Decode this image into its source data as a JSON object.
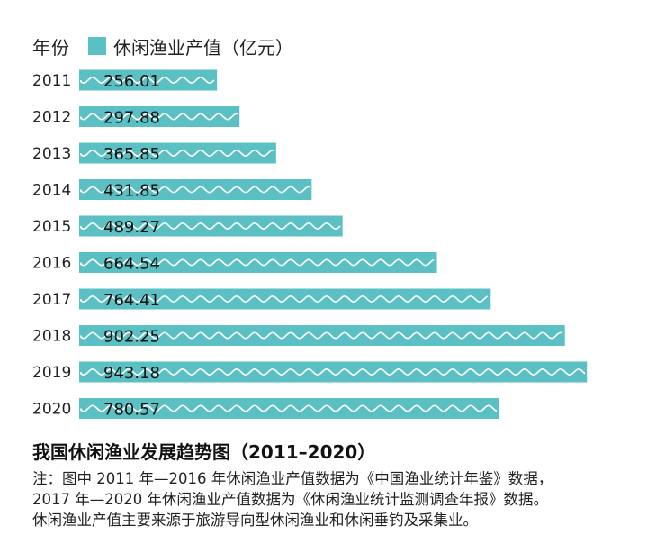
{
  "chart_data": {
    "type": "bar",
    "orientation": "horizontal",
    "categories": [
      "2011",
      "2012",
      "2013",
      "2014",
      "2015",
      "2016",
      "2017",
      "2018",
      "2019",
      "2020"
    ],
    "series": [
      {
        "name": "休闲渔业产值（亿元）",
        "values": [
          256.01,
          297.88,
          365.85,
          431.85,
          489.27,
          664.54,
          764.41,
          902.25,
          943.18,
          780.57
        ],
        "value_labels": [
          "256.01",
          "297.88",
          "365.85",
          "431.85",
          "489.27",
          "664.54",
          "764.41",
          "902.25",
          "943.18",
          "780.57"
        ]
      }
    ],
    "category_axis_header": "年份",
    "title": "我国休闲渔业发展趋势图（2011–2020）",
    "xlim": [
      0,
      1000
    ],
    "grid": false,
    "legend_position": "top-left",
    "bar_color": "#5bc0c3",
    "wave_color": "#ffffff"
  },
  "notes": [
    "注：图中 2011 年—2016 年休闲渔业产值数据为《中国渔业统计年鉴》数据，",
    "2017 年—2020 年休闲渔业产值数据为《休闲渔业统计监测调查年报》数据。",
    "休闲渔业产值主要来源于旅游导向型休闲渔业和休闲垂钓及采集业。"
  ]
}
